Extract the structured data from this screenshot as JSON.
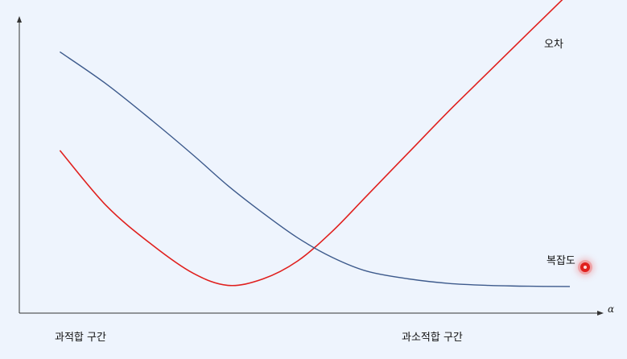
{
  "chart_data": {
    "type": "line",
    "title": "",
    "xlabel": "α",
    "ylabel": "",
    "xlim": [
      0,
      10
    ],
    "ylim": [
      0,
      10
    ],
    "grid": false,
    "legend": "none",
    "series": [
      {
        "name": "오차",
        "color": "#e0201e",
        "x": [
          0.7,
          1.5,
          2.3,
          3.0,
          3.6,
          4.2,
          4.8,
          5.4,
          6.0,
          6.7,
          7.4,
          8.1,
          8.8,
          9.5
        ],
        "y": [
          5.63,
          3.72,
          2.35,
          1.38,
          0.96,
          1.18,
          1.8,
          2.83,
          4.07,
          5.52,
          6.97,
          8.35,
          9.73,
          11.1
        ]
      },
      {
        "name": "복잡도",
        "color": "#3d5a8c",
        "x": [
          0.7,
          1.5,
          2.3,
          3.0,
          3.6,
          4.2,
          4.8,
          5.4,
          6.0,
          6.7,
          7.4,
          8.1,
          8.8,
          9.5
        ],
        "y": [
          9.04,
          7.93,
          6.65,
          5.47,
          4.41,
          3.47,
          2.61,
          1.93,
          1.45,
          1.19,
          1.03,
          0.96,
          0.93,
          0.92
        ]
      }
    ],
    "annotations": {
      "left_region": "과적합 구간",
      "right_region": "과소적합 구간"
    }
  },
  "colors": {
    "background": "#eef4fd",
    "axis": "#333333",
    "marker": "#e0201e"
  }
}
